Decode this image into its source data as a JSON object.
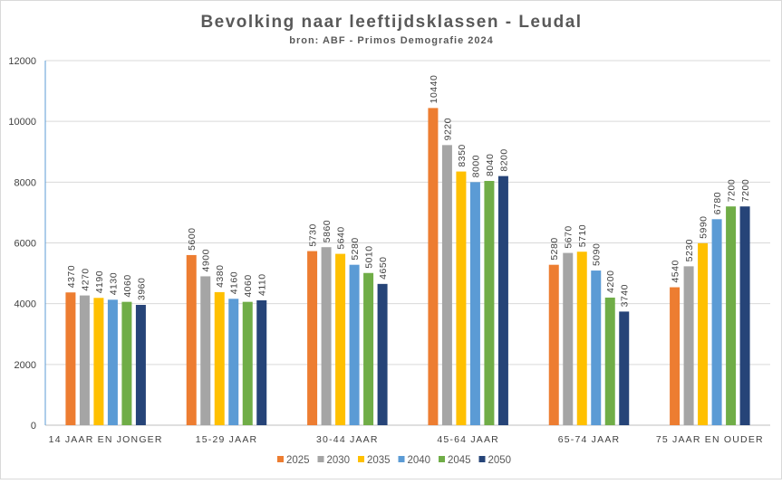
{
  "chart_data": {
    "type": "bar",
    "title": "Bevolking naar leeftijdsklassen - Leudal",
    "subtitle": "bron: ABF - Primos Demografie 2024",
    "xlabel": "",
    "ylabel": "",
    "ylim": [
      0,
      12000
    ],
    "yticks": [
      0,
      2000,
      4000,
      6000,
      8000,
      10000,
      12000
    ],
    "grid": true,
    "legend_position": "bottom",
    "categories": [
      "14 JAAR EN JONGER",
      "15-29 JAAR",
      "30-44 JAAR",
      "45-64 JAAR",
      "65-74 JAAR",
      "75 JAAR EN OUDER"
    ],
    "series": [
      {
        "name": "2025",
        "color": "#ED7D31",
        "values": [
          4370,
          5600,
          5730,
          10440,
          5280,
          4540
        ]
      },
      {
        "name": "2030",
        "color": "#A5A5A5",
        "values": [
          4270,
          4900,
          5860,
          9220,
          5670,
          5230
        ]
      },
      {
        "name": "2035",
        "color": "#FFC000",
        "values": [
          4190,
          4380,
          5640,
          8350,
          5710,
          5990
        ]
      },
      {
        "name": "2040",
        "color": "#5B9BD5",
        "values": [
          4130,
          4160,
          5280,
          8000,
          5090,
          6780
        ]
      },
      {
        "name": "2045",
        "color": "#70AD47",
        "values": [
          4060,
          4060,
          5010,
          8040,
          4200,
          7200
        ]
      },
      {
        "name": "2050",
        "color": "#264478",
        "values": [
          3960,
          4110,
          4650,
          8200,
          3740,
          7200
        ]
      }
    ]
  }
}
